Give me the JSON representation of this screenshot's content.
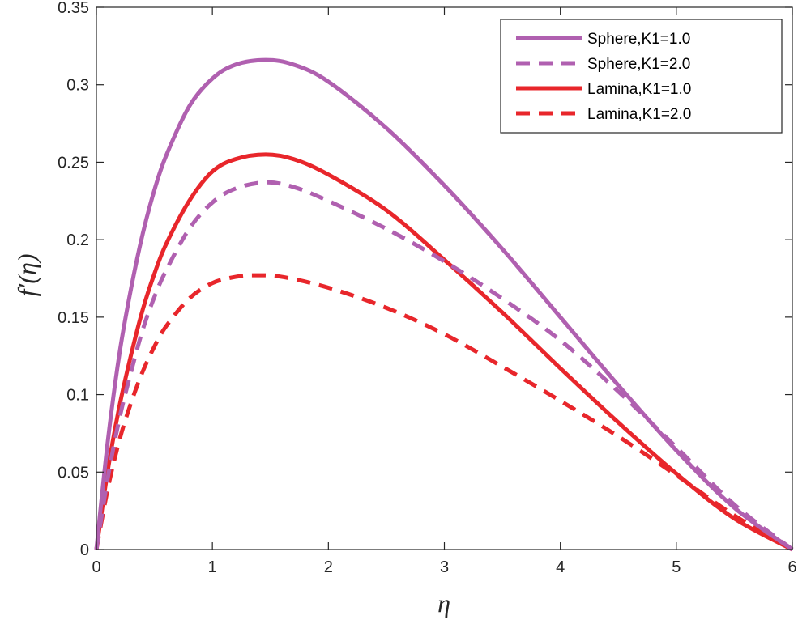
{
  "chart_data": {
    "type": "line",
    "title": "",
    "xlabel": "η",
    "ylabel": "f′(η)",
    "xlim": [
      0,
      6
    ],
    "ylim": [
      0,
      0.35
    ],
    "xticks": [
      0,
      1,
      2,
      3,
      4,
      5,
      6
    ],
    "xtick_labels": [
      "0",
      "1",
      "2",
      "3",
      "4",
      "5",
      "6"
    ],
    "yticks": [
      0,
      0.05,
      0.1,
      0.15,
      0.2,
      0.25,
      0.3,
      0.35
    ],
    "ytick_labels": [
      "0",
      "0.05",
      "0.1",
      "0.15",
      "0.2",
      "0.25",
      "0.3",
      "0.35"
    ],
    "grid": false,
    "legend_position": "top-right",
    "series": [
      {
        "name": "Sphere,K1=1.0",
        "color": "#b060b0",
        "style": "solid",
        "x": [
          0,
          0.1,
          0.2,
          0.3,
          0.4,
          0.5,
          0.6,
          0.8,
          1.0,
          1.2,
          1.46,
          1.7,
          2.0,
          2.5,
          3.0,
          3.5,
          4.0,
          4.5,
          5.0,
          5.5,
          6.0
        ],
        "y": [
          0,
          0.071,
          0.127,
          0.169,
          0.204,
          0.232,
          0.254,
          0.286,
          0.304,
          0.313,
          0.316,
          0.313,
          0.302,
          0.272,
          0.235,
          0.194,
          0.15,
          0.106,
          0.064,
          0.027,
          0
        ]
      },
      {
        "name": "Sphere,K1=2.0",
        "color": "#b060b0",
        "style": "dashed",
        "x": [
          0,
          0.1,
          0.2,
          0.3,
          0.4,
          0.5,
          0.6,
          0.8,
          1.0,
          1.2,
          1.46,
          1.7,
          2.0,
          2.5,
          3.0,
          3.5,
          4.0,
          4.5,
          5.0,
          5.5,
          6.0
        ],
        "y": [
          0,
          0.047,
          0.085,
          0.115,
          0.142,
          0.163,
          0.18,
          0.207,
          0.224,
          0.233,
          0.237,
          0.234,
          0.225,
          0.207,
          0.186,
          0.162,
          0.135,
          0.102,
          0.066,
          0.029,
          0
        ]
      },
      {
        "name": "Lamina,K1=1.0",
        "color": "#e8262b",
        "style": "solid",
        "x": [
          0,
          0.1,
          0.2,
          0.3,
          0.4,
          0.5,
          0.6,
          0.8,
          1.0,
          1.2,
          1.46,
          1.7,
          2.0,
          2.5,
          3.0,
          3.5,
          4.0,
          4.5,
          5.0,
          5.5,
          6.0
        ],
        "y": [
          0,
          0.052,
          0.093,
          0.126,
          0.155,
          0.178,
          0.197,
          0.225,
          0.244,
          0.252,
          0.255,
          0.252,
          0.242,
          0.219,
          0.187,
          0.153,
          0.117,
          0.082,
          0.049,
          0.02,
          0
        ]
      },
      {
        "name": "Lamina,K1=2.0",
        "color": "#e8262b",
        "style": "dashed",
        "x": [
          0,
          0.1,
          0.2,
          0.3,
          0.4,
          0.5,
          0.6,
          0.8,
          1.0,
          1.2,
          1.35,
          1.6,
          2.0,
          2.5,
          3.0,
          3.5,
          4.0,
          4.5,
          5.0,
          5.5,
          6.0
        ],
        "y": [
          0,
          0.04,
          0.071,
          0.095,
          0.115,
          0.131,
          0.144,
          0.162,
          0.172,
          0.176,
          0.177,
          0.176,
          0.169,
          0.156,
          0.139,
          0.118,
          0.096,
          0.073,
          0.048,
          0.022,
          0
        ]
      }
    ]
  }
}
